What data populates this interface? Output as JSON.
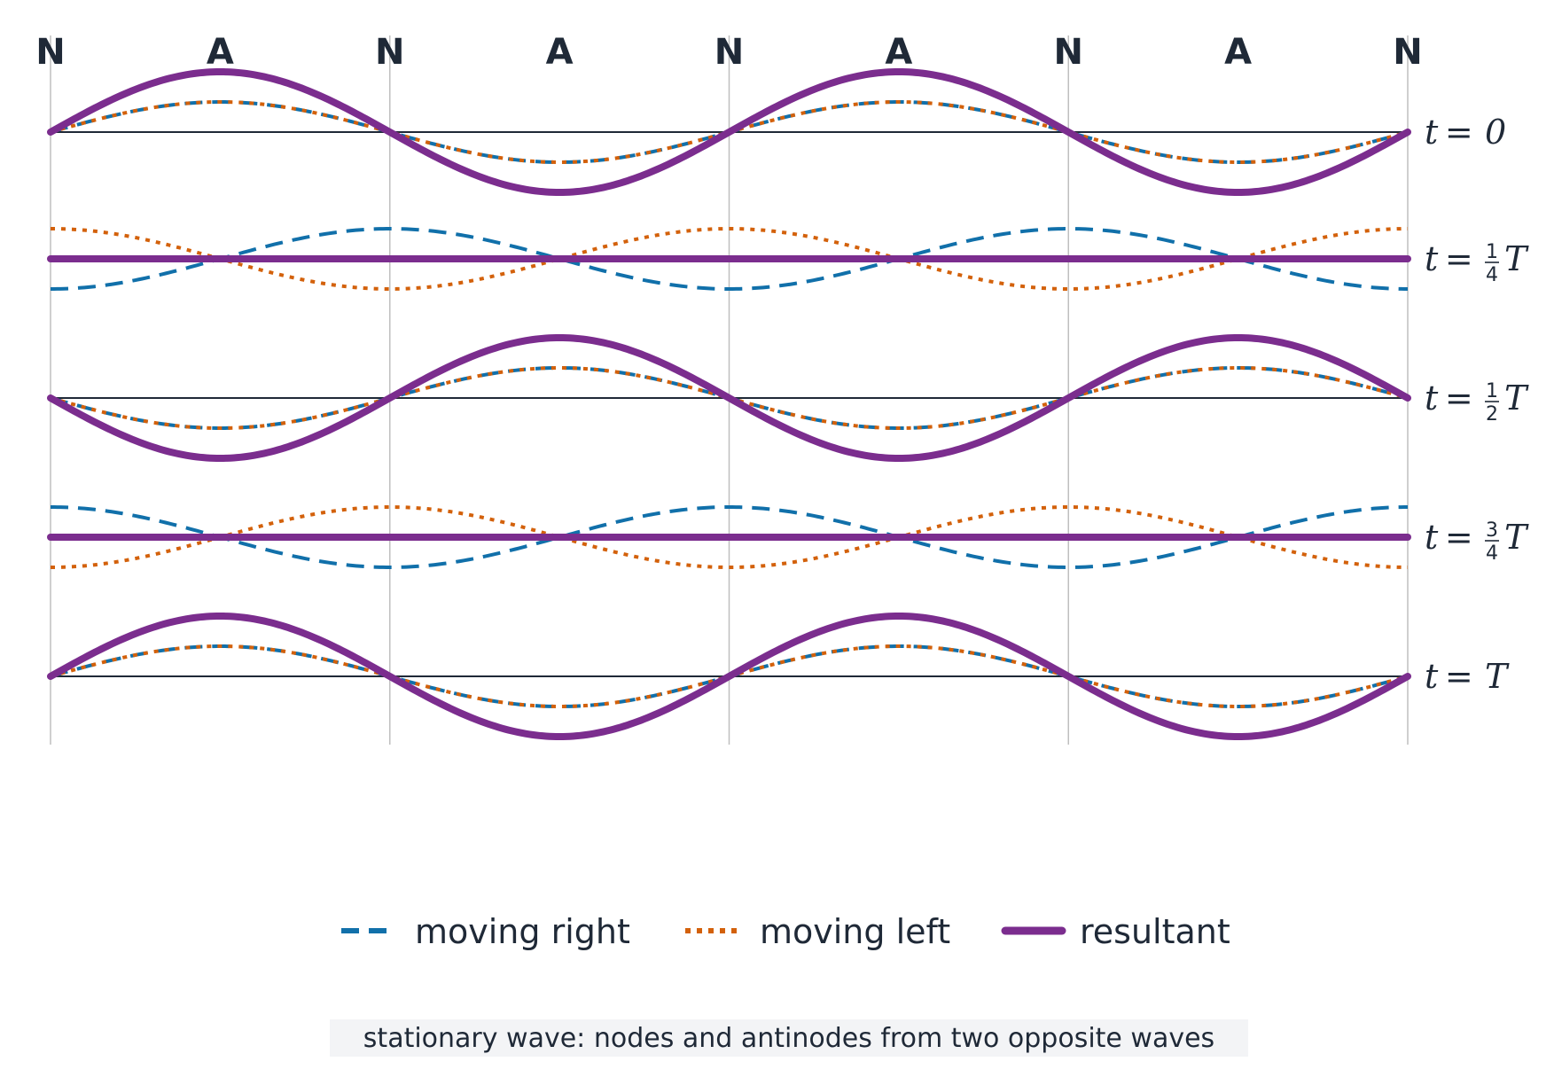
{
  "node_labels": [
    "N",
    "A",
    "N",
    "A",
    "N",
    "A",
    "N",
    "A",
    "N"
  ],
  "time_labels": [
    {
      "var": "t",
      "eq": "=",
      "value": "0"
    },
    {
      "var": "t",
      "eq": "=",
      "num": "1",
      "den": "4",
      "suffix": "T"
    },
    {
      "var": "t",
      "eq": "=",
      "num": "1",
      "den": "2",
      "suffix": "T"
    },
    {
      "var": "t",
      "eq": "=",
      "num": "3",
      "den": "4",
      "suffix": "T"
    },
    {
      "var": "t",
      "eq": "=",
      "value": "T"
    }
  ],
  "legend": {
    "right": "moving right",
    "left": "moving left",
    "resultant": "resultant"
  },
  "caption": "stationary wave: nodes and antinodes from two opposite waves",
  "colors": {
    "moving_right": "#1170aa",
    "moving_left": "#d3610b",
    "resultant": "#7b2d8e",
    "axis": "#1f2937",
    "gridline": "#bfbfbf",
    "caption_bg": "#f3f4f6",
    "text": "#1f2937"
  },
  "chart_data": {
    "type": "line",
    "wavelengths_shown": 2,
    "time_phases": [
      0,
      0.25,
      0.5,
      0.75,
      1
    ],
    "component_amplitude": 1,
    "resultant_amplitude": 2,
    "series": [
      {
        "name": "moving right",
        "function": "sin(kx - wt)"
      },
      {
        "name": "moving left",
        "function": "sin(kx + wt)"
      },
      {
        "name": "resultant",
        "function": "2 sin(kx) cos(wt)"
      }
    ]
  }
}
